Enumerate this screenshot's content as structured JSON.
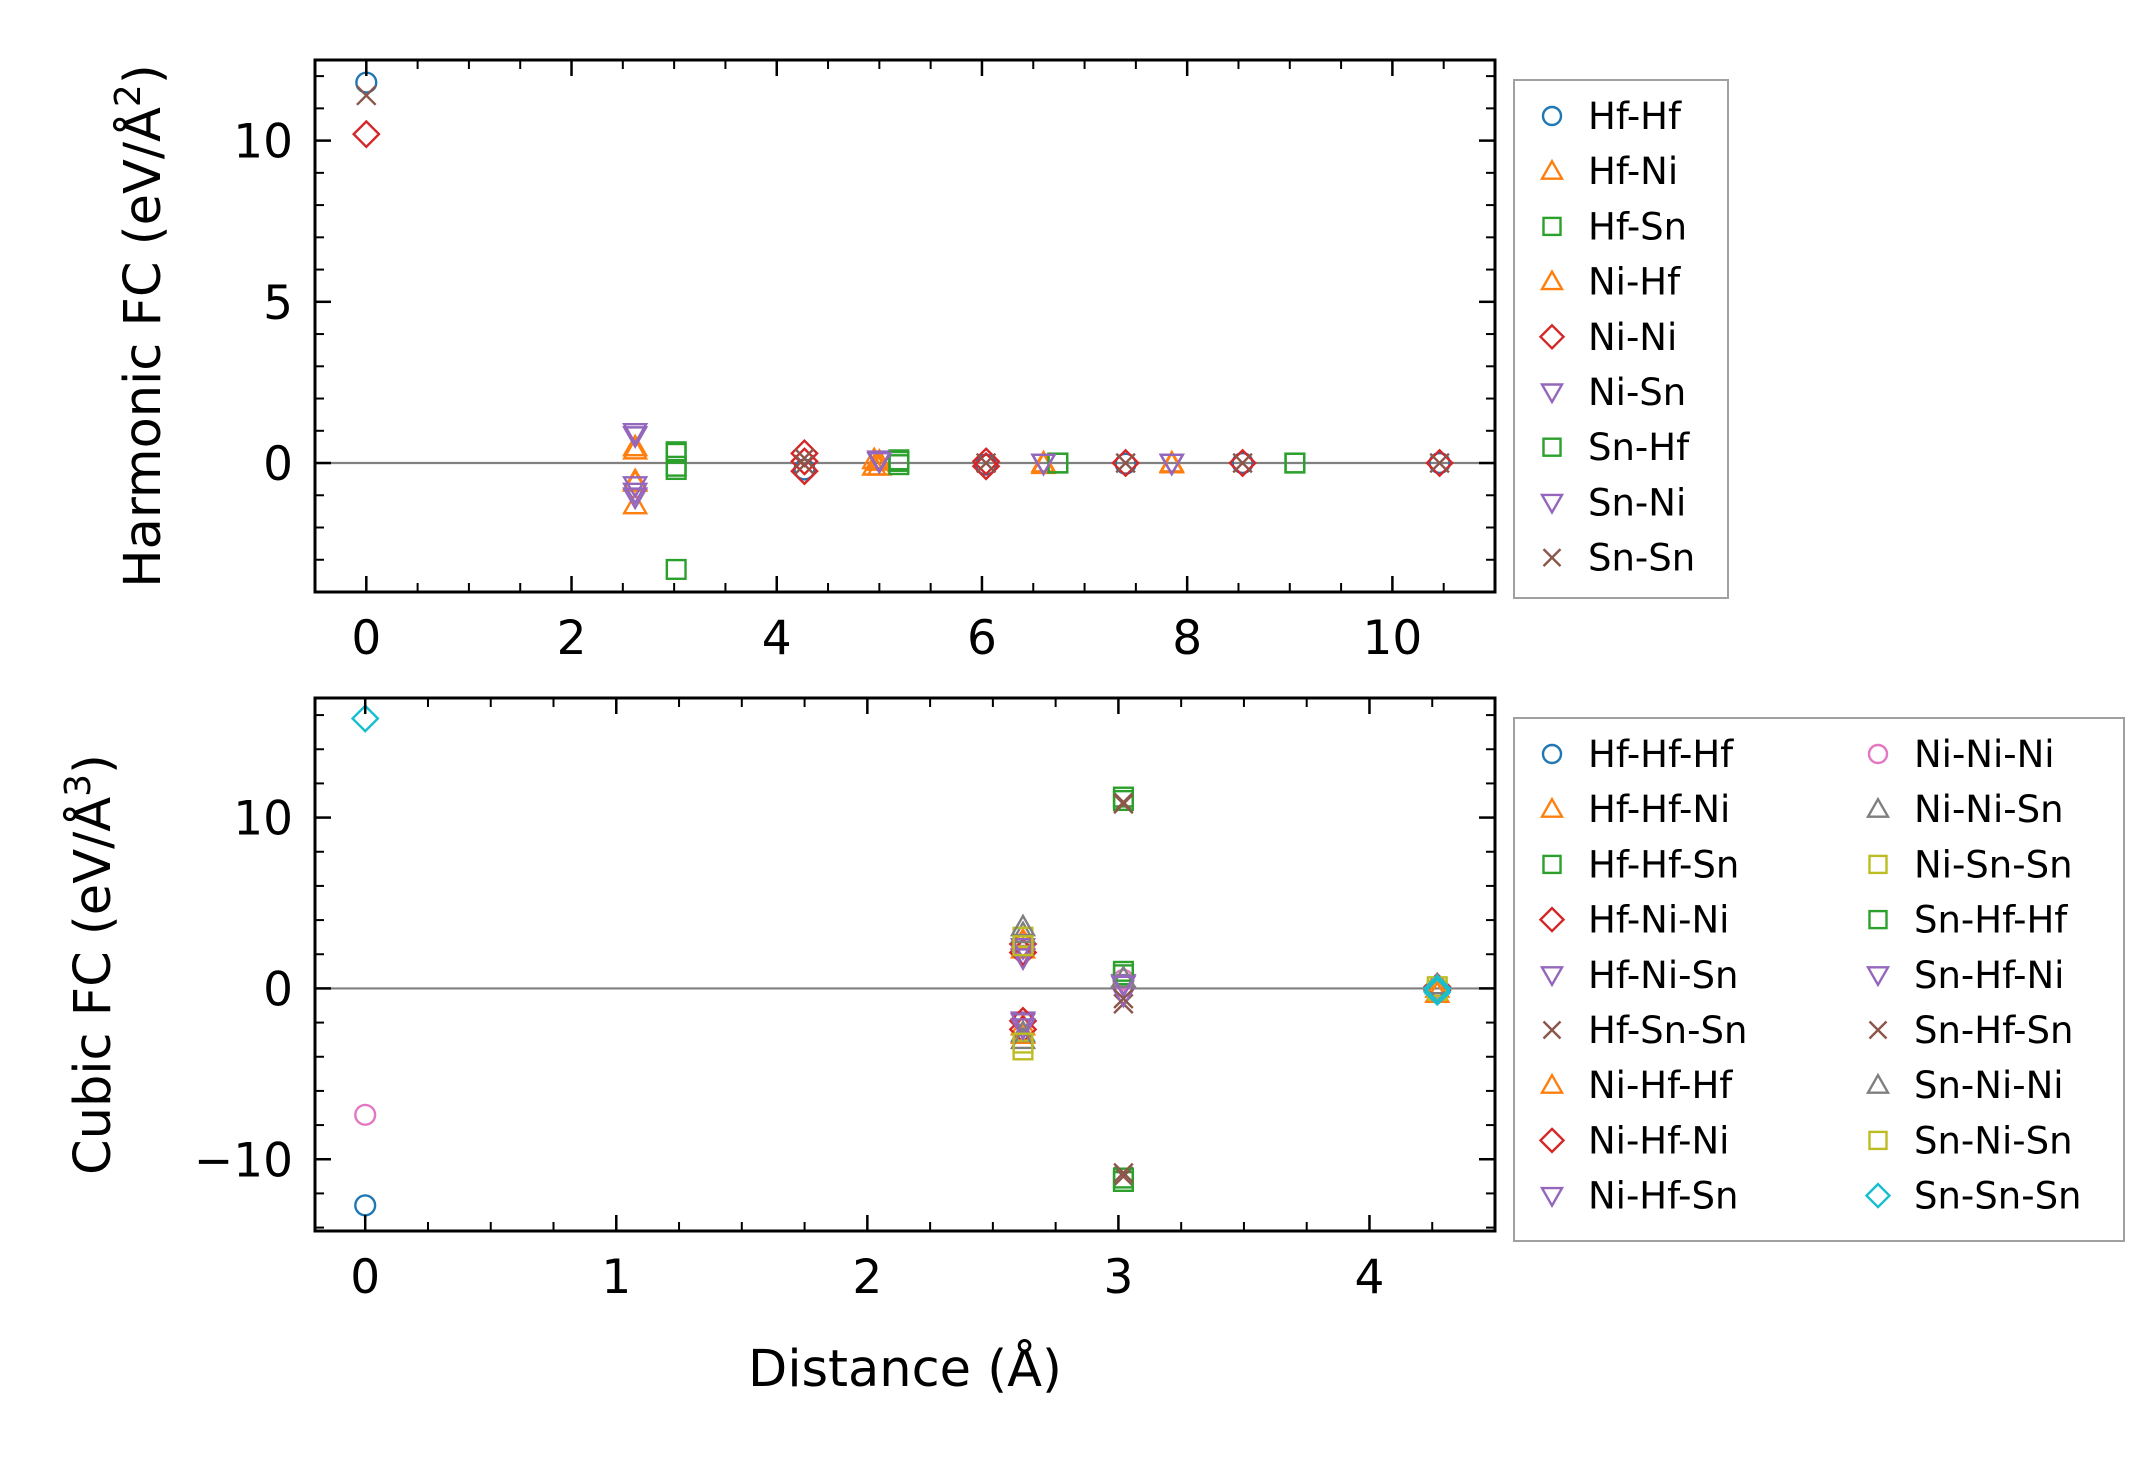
{
  "chart_data": [
    {
      "type": "scatter",
      "ylabel": "Harmonic FC (eV/Å",
      "ylabel_sup": "2",
      "ylabel_close": ")",
      "xlabel": "",
      "xlim": [
        -0.5,
        11.0
      ],
      "ylim": [
        -4.0,
        12.5
      ],
      "xticks": [
        0,
        2,
        4,
        6,
        8,
        10
      ],
      "yticks": [
        0,
        5,
        10
      ],
      "xtick_labels": [
        "0",
        "2",
        "4",
        "6",
        "8",
        "10"
      ],
      "ytick_labels": [
        "0",
        "5",
        "10"
      ],
      "zero_line": true,
      "legend_position": "outside-right",
      "legend_columns": 1,
      "series": [
        {
          "name": "Hf-Hf",
          "marker": "circle",
          "color": "#1f77b4",
          "points": [
            [
              0,
              11.8
            ],
            [
              4.27,
              -0.2
            ],
            [
              6.04,
              -0.05
            ],
            [
              7.4,
              -0.02
            ],
            [
              8.54,
              0.0
            ],
            [
              10.46,
              0.0
            ]
          ]
        },
        {
          "name": "Hf-Ni",
          "marker": "triangle-up",
          "color": "#ff7f0e",
          "points": [
            [
              2.62,
              0.5
            ],
            [
              2.62,
              -0.55
            ],
            [
              2.62,
              -1.3
            ],
            [
              5.0,
              -0.1
            ],
            [
              5.0,
              0.05
            ],
            [
              6.6,
              -0.05
            ],
            [
              7.85,
              -0.03
            ]
          ]
        },
        {
          "name": "Hf-Sn",
          "marker": "square",
          "color": "#2ca02c",
          "points": [
            [
              3.02,
              0.35
            ],
            [
              3.02,
              -0.2
            ],
            [
              3.02,
              -3.3
            ],
            [
              5.19,
              0.1
            ],
            [
              5.19,
              -0.05
            ],
            [
              6.74,
              0.0
            ],
            [
              9.05,
              0.0
            ]
          ]
        },
        {
          "name": "Ni-Hf",
          "marker": "triangle-up",
          "color": "#ff7f0e",
          "points": [
            [
              2.62,
              0.4
            ],
            [
              2.62,
              -0.6
            ],
            [
              4.95,
              0.1
            ],
            [
              4.95,
              -0.1
            ],
            [
              6.6,
              0.0
            ],
            [
              7.85,
              0.0
            ]
          ]
        },
        {
          "name": "Ni-Ni",
          "marker": "diamond",
          "color": "#d62728",
          "points": [
            [
              0,
              10.2
            ],
            [
              4.27,
              0.3
            ],
            [
              4.27,
              0.05
            ],
            [
              4.27,
              -0.25
            ],
            [
              6.04,
              0.05
            ],
            [
              6.04,
              -0.1
            ],
            [
              7.4,
              0.0
            ],
            [
              8.54,
              0.0
            ],
            [
              10.46,
              0.0
            ]
          ]
        },
        {
          "name": "Ni-Sn",
          "marker": "triangle-down",
          "color": "#9467bd",
          "points": [
            [
              2.62,
              0.95
            ],
            [
              2.62,
              -0.7
            ],
            [
              2.62,
              -1.05
            ],
            [
              5.0,
              0.1
            ],
            [
              6.6,
              0.0
            ],
            [
              7.85,
              0.0
            ]
          ]
        },
        {
          "name": "Sn-Hf",
          "marker": "square",
          "color": "#2ca02c",
          "points": [
            [
              3.02,
              0.3
            ],
            [
              3.02,
              -0.1
            ],
            [
              5.19,
              0.05
            ],
            [
              6.74,
              0.0
            ],
            [
              9.05,
              0.0
            ]
          ]
        },
        {
          "name": "Sn-Ni",
          "marker": "triangle-down",
          "color": "#9467bd",
          "points": [
            [
              2.62,
              0.85
            ],
            [
              2.62,
              -0.9
            ],
            [
              5.0,
              0.05
            ],
            [
              6.6,
              0.0
            ],
            [
              7.85,
              0.0
            ]
          ]
        },
        {
          "name": "Sn-Sn",
          "marker": "x",
          "color": "#8c564b",
          "points": [
            [
              0,
              11.4
            ],
            [
              4.27,
              0.15
            ],
            [
              4.27,
              -0.05
            ],
            [
              6.04,
              0.0
            ],
            [
              7.4,
              0.0
            ],
            [
              8.54,
              0.0
            ],
            [
              10.46,
              0.0
            ]
          ]
        }
      ]
    },
    {
      "type": "scatter",
      "ylabel": "Cubic FC (eV/Å",
      "ylabel_sup": "3",
      "ylabel_close": ")",
      "xlabel": "Distance (Å)",
      "xlim": [
        -0.2,
        4.5
      ],
      "ylim": [
        -14.2,
        17.0
      ],
      "xticks": [
        0,
        1,
        2,
        3,
        4
      ],
      "yticks": [
        -10,
        0,
        10
      ],
      "xtick_labels": [
        "0",
        "1",
        "2",
        "3",
        "4"
      ],
      "ytick_labels": [
        "−10",
        "0",
        "10"
      ],
      "zero_line": true,
      "legend_position": "outside-right",
      "legend_columns": 2,
      "series": [
        {
          "name": "Hf-Hf-Hf",
          "marker": "circle",
          "color": "#1f77b4",
          "points": [
            [
              0,
              -12.7
            ],
            [
              4.27,
              -0.2
            ]
          ]
        },
        {
          "name": "Hf-Hf-Ni",
          "marker": "triangle-up",
          "color": "#ff7f0e",
          "points": [
            [
              2.62,
              2.3
            ],
            [
              2.62,
              -2.2
            ],
            [
              4.27,
              -0.3
            ]
          ]
        },
        {
          "name": "Hf-Hf-Sn",
          "marker": "square",
          "color": "#2ca02c",
          "points": [
            [
              3.02,
              11.2
            ],
            [
              3.02,
              -11.3
            ],
            [
              3.02,
              0.8
            ]
          ]
        },
        {
          "name": "Hf-Ni-Ni",
          "marker": "diamond",
          "color": "#d62728",
          "points": [
            [
              2.62,
              2.6
            ],
            [
              2.62,
              -2.4
            ],
            [
              4.27,
              0.1
            ]
          ]
        },
        {
          "name": "Hf-Ni-Sn",
          "marker": "triangle-down",
          "color": "#9467bd",
          "points": [
            [
              2.62,
              2.0
            ],
            [
              2.62,
              -1.9
            ],
            [
              3.02,
              0.3
            ]
          ]
        },
        {
          "name": "Hf-Sn-Sn",
          "marker": "x",
          "color": "#8c564b",
          "points": [
            [
              3.02,
              10.9
            ],
            [
              3.02,
              -11.0
            ],
            [
              3.02,
              -0.9
            ]
          ]
        },
        {
          "name": "Ni-Hf-Hf",
          "marker": "triangle-up",
          "color": "#ff7f0e",
          "points": [
            [
              2.62,
              2.8
            ],
            [
              2.62,
              -2.7
            ],
            [
              4.27,
              0.0
            ]
          ]
        },
        {
          "name": "Ni-Hf-Ni",
          "marker": "diamond",
          "color": "#d62728",
          "points": [
            [
              2.62,
              2.1
            ],
            [
              2.62,
              -1.9
            ],
            [
              4.27,
              -0.1
            ]
          ]
        },
        {
          "name": "Ni-Hf-Sn",
          "marker": "triangle-down",
          "color": "#9467bd",
          "points": [
            [
              2.62,
              1.8
            ],
            [
              2.62,
              -2.0
            ],
            [
              3.02,
              -0.4
            ]
          ]
        },
        {
          "name": "Ni-Ni-Ni",
          "marker": "circle",
          "color": "#e377c2",
          "points": [
            [
              0,
              -7.4
            ],
            [
              3.02,
              0.5
            ],
            [
              4.27,
              0.0
            ]
          ]
        },
        {
          "name": "Ni-Ni-Sn",
          "marker": "triangle-up",
          "color": "#7f7f7f",
          "points": [
            [
              2.62,
              3.2
            ],
            [
              2.62,
              -2.6
            ],
            [
              3.02,
              0.6
            ]
          ]
        },
        {
          "name": "Ni-Sn-Sn",
          "marker": "square",
          "color": "#bcbd22",
          "points": [
            [
              2.62,
              3.0
            ],
            [
              2.62,
              -3.6
            ],
            [
              4.27,
              0.1
            ]
          ]
        },
        {
          "name": "Sn-Hf-Hf",
          "marker": "square",
          "color": "#2ca02c",
          "points": [
            [
              3.02,
              11.0
            ],
            [
              3.02,
              -11.1
            ],
            [
              3.02,
              1.0
            ]
          ]
        },
        {
          "name": "Sn-Hf-Ni",
          "marker": "triangle-down",
          "color": "#9467bd",
          "points": [
            [
              2.62,
              2.4
            ],
            [
              2.62,
              -2.3
            ],
            [
              3.02,
              0.2
            ]
          ]
        },
        {
          "name": "Sn-Hf-Sn",
          "marker": "x",
          "color": "#8c564b",
          "points": [
            [
              3.02,
              10.8
            ],
            [
              3.02,
              -10.8
            ],
            [
              3.02,
              -0.6
            ]
          ]
        },
        {
          "name": "Sn-Ni-Ni",
          "marker": "triangle-up",
          "color": "#7f7f7f",
          "points": [
            [
              2.62,
              3.6
            ],
            [
              2.62,
              -3.0
            ],
            [
              4.27,
              0.2
            ]
          ]
        },
        {
          "name": "Sn-Ni-Sn",
          "marker": "square",
          "color": "#bcbd22",
          "points": [
            [
              2.62,
              2.5
            ],
            [
              2.62,
              -3.2
            ],
            [
              4.27,
              -0.1
            ]
          ]
        },
        {
          "name": "Sn-Sn-Sn",
          "marker": "diamond",
          "color": "#17becf",
          "points": [
            [
              0,
              15.8
            ],
            [
              4.27,
              0.0
            ],
            [
              4.27,
              -0.2
            ]
          ]
        }
      ]
    }
  ]
}
